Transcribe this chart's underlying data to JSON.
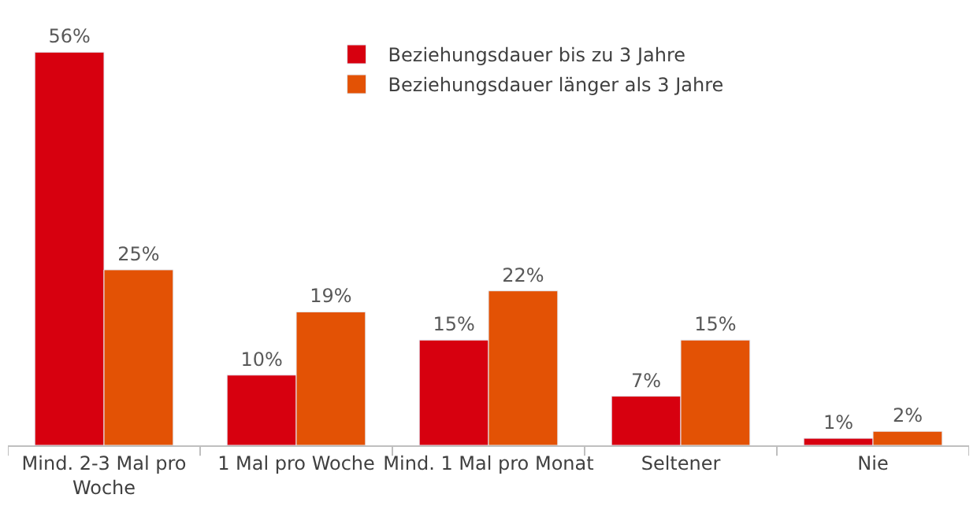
{
  "chart_data": {
    "type": "bar",
    "categories": [
      "Mind. 2-3 Mal pro Woche",
      "1 Mal pro Woche",
      "Mind. 1 Mal pro Monat",
      "Seltener",
      "Nie"
    ],
    "series": [
      {
        "name": "Beziehungsdauer bis zu 3 Jahre",
        "color": "#d7000f",
        "values": [
          56,
          10,
          15,
          7,
          1
        ],
        "value_labels": [
          "56%",
          "10%",
          "15%",
          "7%",
          "1%"
        ]
      },
      {
        "name": "Beziehungsdauer länger als 3 Jahre",
        "color": "#e35205",
        "values": [
          25,
          19,
          22,
          15,
          2
        ],
        "value_labels": [
          "25%",
          "19%",
          "22%",
          "15%",
          "2%"
        ]
      }
    ],
    "legend": "top"
  }
}
